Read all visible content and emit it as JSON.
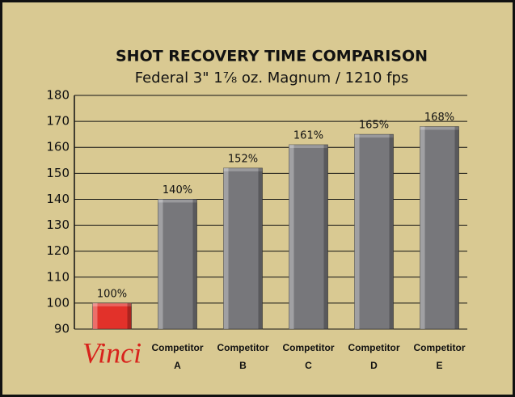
{
  "chart_data": {
    "type": "bar",
    "title": "SHOT RECOVERY TIME COMPARISON",
    "subtitle": "Federal 3\" 1⅞ oz. Magnum / 1210 fps",
    "categories": [
      "Vinci",
      "Competitor A",
      "Competitor B",
      "Competitor C",
      "Competitor D",
      "Competitor E"
    ],
    "values": [
      100,
      140,
      152,
      161,
      165,
      168
    ],
    "value_labels": [
      "100%",
      "140%",
      "152%",
      "161%",
      "165%",
      "168%"
    ],
    "colors": [
      "#e2312a",
      "#77777b",
      "#77777b",
      "#77777b",
      "#77777b",
      "#77777b"
    ],
    "ylim": [
      90,
      180
    ],
    "yticks": [
      90,
      100,
      110,
      120,
      130,
      140,
      150,
      160,
      170,
      180
    ],
    "grid": true
  }
}
